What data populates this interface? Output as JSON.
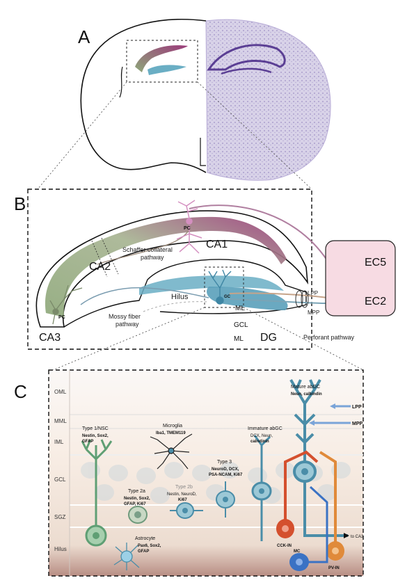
{
  "panels": {
    "a": "A",
    "b": "B",
    "c": "C"
  },
  "panel_b": {
    "ca1": "CA1",
    "ca2": "CA2",
    "ca3": "CA3",
    "dg": "DG",
    "pc_top": "PC",
    "pc_bottom": "PC",
    "gc": "GC",
    "schaffer_line1": "Schaffer collateral",
    "schaffer_line2": "pathway",
    "mossy_line1": "Mossy fiber",
    "mossy_line2": "pathway",
    "hilus": "Hilus",
    "ml_upper": "ML",
    "gcl": "GCL",
    "ml_lower": "ML",
    "ec5": "EC5",
    "ec2": "EC2",
    "lpp": "LPP",
    "mpp": "MPP",
    "perforant": "Perforant pathway"
  },
  "panel_c": {
    "layers": [
      "OML",
      "MML",
      "IML",
      "GCL",
      "SGZ",
      "Hilus"
    ],
    "type1_title": "Type 1/NSC",
    "type1_markers_line1": "Nestin, Sox2,",
    "type1_markers_line2": "GFAP",
    "microglia_title": "Microglia",
    "microglia_markers": "Iba1, TMEM119",
    "immature_title": "Immature abGC",
    "immature_markers_line1": "DCX, Neun,",
    "immature_markers_line2": "calretinin",
    "mature_title": "Mature abGC",
    "mature_markers": "Neun, calbindin",
    "type3_title": "Type 3",
    "type3_markers_line1": "NeuroD, DCX,",
    "type3_markers_line2": "PSA-NCAM, Ki67",
    "type2a_title": "Type 2a",
    "type2a_markers_line1": "Nestin, Sox2,",
    "type2a_markers_line2": "GFAP, Ki67",
    "type2b_title": "Type 2b",
    "type2b_markers_line1": "Nestin, NeuroD,",
    "type2b_markers_line2": "Ki67",
    "astrocyte_title": "Astrocyte",
    "astrocyte_markers_line1": "Pax6, Sox2,",
    "astrocyte_markers_line2": "GFAP",
    "lpp": "LPP",
    "mpp": "MPP",
    "to_ca3": "to CA3",
    "cck": "CCK-IN",
    "mc": "MC",
    "pv": "PV-IN"
  },
  "colors": {
    "ca1": "#9b3a7a",
    "ca3": "#8ea87a",
    "dg": "#6aaec4",
    "ec": "#f7dbe3",
    "nsc": "#5f9f74",
    "gc": "#4a8da8",
    "cck": "#d4502e",
    "pv": "#e08a3a",
    "mc": "#3a72c4",
    "nissl": "#8a7ab8"
  }
}
